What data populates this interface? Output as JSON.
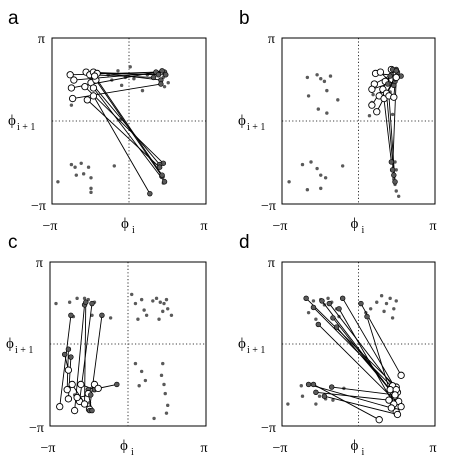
{
  "chart_data": [
    {
      "panel": "a",
      "type": "scatter",
      "xlabel": "ϕ",
      "xlabel_sub": "i",
      "ylabel": "ϕ",
      "ylabel_sub": "i + 1",
      "x_tick_labels": [
        "−π",
        "π"
      ],
      "y_tick_labels": [
        "π",
        "−π"
      ],
      "xlim": [
        -3.1416,
        3.1416
      ],
      "ylim": [
        -3.1416,
        3.1416
      ],
      "grid": false,
      "crosshair_at_zero": true,
      "background_points": [
        [
          -0.85,
          1.75
        ],
        [
          -0.7,
          1.55
        ],
        [
          -0.45,
          1.9
        ],
        [
          -0.3,
          1.35
        ],
        [
          -0.15,
          1.65
        ],
        [
          0.05,
          2.05
        ],
        [
          0.2,
          1.6
        ],
        [
          0.55,
          1.15
        ],
        [
          0.75,
          1.75
        ],
        [
          1.05,
          1.8
        ],
        [
          1.25,
          1.85
        ],
        [
          1.4,
          1.65
        ],
        [
          1.45,
          1.3
        ],
        [
          1.6,
          1.45
        ],
        [
          -2.35,
          0.6
        ],
        [
          -0.35,
          0.05
        ],
        [
          -2.35,
          -1.65
        ],
        [
          -2.2,
          -1.75
        ],
        [
          -1.95,
          -1.6
        ],
        [
          -1.65,
          -1.75
        ],
        [
          -2.15,
          -2.05
        ],
        [
          -1.85,
          -2.0
        ],
        [
          -1.55,
          -2.15
        ],
        [
          -2.9,
          -2.3
        ],
        [
          -1.55,
          -2.55
        ],
        [
          -1.55,
          -2.7
        ],
        [
          -0.6,
          -1.7
        ],
        [
          1.35,
          -1.6
        ],
        [
          1.3,
          -2.1
        ],
        [
          1.45,
          -2.25
        ],
        [
          1.4,
          -2.35
        ]
      ],
      "trajectories": [
        {
          "start": [
            -2.4,
            1.75
          ],
          "end": [
            1.1,
            1.85
          ]
        },
        {
          "start": [
            -2.25,
            1.55
          ],
          "end": [
            1.45,
            1.85
          ]
        },
        {
          "start": [
            -1.75,
            1.85
          ],
          "end": [
            1.2,
            1.75
          ]
        },
        {
          "start": [
            -1.6,
            1.75
          ],
          "end": [
            1.0,
            1.65
          ]
        },
        {
          "start": [
            -1.45,
            1.85
          ],
          "end": [
            1.3,
            1.55
          ]
        },
        {
          "start": [
            -1.3,
            1.8
          ],
          "end": [
            1.5,
            1.75
          ]
        },
        {
          "start": [
            -2.35,
            1.25
          ],
          "end": [
            1.35,
            1.9
          ]
        },
        {
          "start": [
            -1.8,
            1.3
          ],
          "end": [
            1.4,
            -1.6
          ]
        },
        {
          "start": [
            -1.55,
            1.45
          ],
          "end": [
            1.25,
            -1.65
          ]
        },
        {
          "start": [
            -1.35,
            1.55
          ],
          "end": [
            1.35,
            -2.1
          ]
        },
        {
          "start": [
            -1.45,
            1.25
          ],
          "end": [
            1.45,
            -2.3
          ]
        },
        {
          "start": [
            -2.3,
            0.85
          ],
          "end": [
            1.3,
            1.4
          ]
        },
        {
          "start": [
            -1.7,
            0.8
          ],
          "end": [
            1.25,
            -1.75
          ]
        },
        {
          "start": [
            -1.45,
            0.95
          ],
          "end": [
            0.85,
            -2.75
          ]
        },
        {
          "start": [
            -1.4,
            1.7
          ],
          "end": [
            1.35,
            -2.05
          ]
        }
      ]
    },
    {
      "panel": "b",
      "type": "scatter",
      "xlabel": "ϕ",
      "xlabel_sub": "i",
      "ylabel": "ϕ",
      "ylabel_sub": "i + 1",
      "x_tick_labels": [
        "−π",
        "π"
      ],
      "y_tick_labels": [
        "π",
        "−π"
      ],
      "xlim": [
        -3.1416,
        3.1416
      ],
      "ylim": [
        -3.1416,
        3.1416
      ],
      "grid": false,
      "crosshair_at_zero": true,
      "background_points": [
        [
          -2.1,
          1.65
        ],
        [
          -2.05,
          0.95
        ],
        [
          -1.7,
          1.75
        ],
        [
          -1.55,
          1.6
        ],
        [
          -1.4,
          1.5
        ],
        [
          -1.15,
          1.7
        ],
        [
          -1.3,
          1.15
        ],
        [
          -1.65,
          0.45
        ],
        [
          -1.3,
          0.3
        ],
        [
          -0.85,
          0.8
        ],
        [
          -2.85,
          -2.3
        ],
        [
          -2.3,
          -1.65
        ],
        [
          -1.95,
          -1.55
        ],
        [
          -1.7,
          -1.8
        ],
        [
          -1.55,
          -2.05
        ],
        [
          -1.55,
          -2.55
        ],
        [
          -2.1,
          -2.6
        ],
        [
          -1.35,
          -2.15
        ],
        [
          -0.65,
          -1.7
        ],
        [
          0.6,
          1.0
        ],
        [
          1.5,
          -1.55
        ],
        [
          1.55,
          -1.85
        ],
        [
          1.45,
          -2.2
        ],
        [
          1.5,
          -2.4
        ],
        [
          1.55,
          -2.65
        ],
        [
          1.65,
          -2.85
        ],
        [
          1.3,
          1.1
        ],
        [
          0.55,
          0.7
        ],
        [
          0.45,
          0.2
        ],
        [
          1.4,
          0.25
        ]
      ],
      "trajectories": [
        {
          "start": [
            0.7,
            1.8
          ],
          "end": [
            1.75,
            1.7
          ]
        },
        {
          "start": [
            0.9,
            1.85
          ],
          "end": [
            1.45,
            1.35
          ]
        },
        {
          "start": [
            0.65,
            1.4
          ],
          "end": [
            1.35,
            1.75
          ]
        },
        {
          "start": [
            0.55,
            1.2
          ],
          "end": [
            1.5,
            1.5
          ]
        },
        {
          "start": [
            1.1,
            1.5
          ],
          "end": [
            1.55,
            1.95
          ]
        },
        {
          "start": [
            1.35,
            1.95
          ],
          "end": [
            1.2,
            1.4
          ]
        },
        {
          "start": [
            0.85,
            0.95
          ],
          "end": [
            1.4,
            1.95
          ]
        },
        {
          "start": [
            1.05,
            0.85
          ],
          "end": [
            1.5,
            1.6
          ]
        },
        {
          "start": [
            1.0,
            1.2
          ],
          "end": [
            1.35,
            -1.55
          ]
        },
        {
          "start": [
            1.15,
            1.05
          ],
          "end": [
            1.45,
            -2.05
          ]
        },
        {
          "start": [
            1.25,
            0.95
          ],
          "end": [
            1.5,
            -2.3
          ]
        },
        {
          "start": [
            0.55,
            0.6
          ],
          "end": [
            1.3,
            1.7
          ]
        },
        {
          "start": [
            0.75,
            0.35
          ],
          "end": [
            1.6,
            1.85
          ]
        },
        {
          "start": [
            1.45,
            0.9
          ],
          "end": [
            1.55,
            1.9
          ]
        },
        {
          "start": [
            1.55,
            1.65
          ],
          "end": [
            1.4,
            -1.85
          ]
        }
      ]
    },
    {
      "panel": "c",
      "type": "scatter",
      "xlabel": "ϕ",
      "xlabel_sub": "i",
      "ylabel": "ϕ",
      "ylabel_sub": "i + 1",
      "x_tick_labels": [
        "−π",
        "π"
      ],
      "y_tick_labels": [
        "π",
        "−π"
      ],
      "xlim": [
        -3.1416,
        3.1416
      ],
      "ylim": [
        -3.1416,
        3.1416
      ],
      "grid": false,
      "crosshair_at_zero": true,
      "background_points": [
        [
          -2.9,
          1.55
        ],
        [
          -2.35,
          1.6
        ],
        [
          -2.05,
          1.75
        ],
        [
          -1.75,
          1.75
        ],
        [
          -1.6,
          1.7
        ],
        [
          -1.35,
          1.6
        ],
        [
          -2.2,
          1.05
        ],
        [
          -1.45,
          1.1
        ],
        [
          -0.7,
          1.0
        ],
        [
          0.15,
          1.9
        ],
        [
          0.3,
          1.55
        ],
        [
          0.55,
          1.7
        ],
        [
          0.65,
          1.3
        ],
        [
          0.75,
          1.1
        ],
        [
          1.0,
          1.65
        ],
        [
          1.15,
          1.75
        ],
        [
          1.3,
          1.6
        ],
        [
          1.45,
          1.55
        ],
        [
          1.55,
          1.7
        ],
        [
          1.4,
          1.25
        ],
        [
          1.6,
          1.35
        ],
        [
          1.75,
          1.1
        ],
        [
          0.4,
          0.95
        ],
        [
          1.25,
          0.95
        ],
        [
          0.3,
          -0.75
        ],
        [
          0.55,
          -1.05
        ],
        [
          0.7,
          -1.4
        ],
        [
          0.45,
          -1.6
        ],
        [
          1.4,
          -0.75
        ],
        [
          1.35,
          -1.2
        ],
        [
          1.45,
          -1.55
        ],
        [
          1.5,
          -1.9
        ],
        [
          1.6,
          -2.35
        ],
        [
          1.55,
          -2.65
        ],
        [
          1.05,
          -2.85
        ],
        [
          -2.35,
          -1.65
        ],
        [
          -2.15,
          -1.95
        ],
        [
          -1.55,
          -2.25
        ]
      ],
      "trajectories": [
        {
          "start": [
            -2.75,
            -2.4
          ],
          "end": [
            -2.3,
            1.1
          ]
        },
        {
          "start": [
            -2.4,
            -2.1
          ],
          "end": [
            -2.3,
            -0.5
          ]
        },
        {
          "start": [
            -2.15,
            -2.55
          ],
          "end": [
            -1.75,
            1.5
          ]
        },
        {
          "start": [
            -1.95,
            -2.2
          ],
          "end": [
            -1.45,
            1.55
          ]
        },
        {
          "start": [
            -2.45,
            -1.75
          ],
          "end": [
            -2.4,
            -0.2
          ]
        },
        {
          "start": [
            -1.75,
            -2.3
          ],
          "end": [
            -1.7,
            1.6
          ]
        },
        {
          "start": [
            -1.55,
            -2.5
          ],
          "end": [
            -1.05,
            1.1
          ]
        },
        {
          "start": [
            -1.9,
            -1.55
          ],
          "end": [
            -1.35,
            -1.75
          ]
        },
        {
          "start": [
            -2.25,
            -1.55
          ],
          "end": [
            -1.55,
            -2.55
          ]
        },
        {
          "start": [
            -1.35,
            -1.55
          ],
          "end": [
            -1.6,
            -1.75
          ]
        },
        {
          "start": [
            -2.4,
            -1.0
          ],
          "end": [
            -2.55,
            -0.4
          ]
        },
        {
          "start": [
            -1.6,
            -1.9
          ],
          "end": [
            -1.45,
            -2.55
          ]
        },
        {
          "start": [
            -1.2,
            -1.7
          ],
          "end": [
            -0.45,
            -1.55
          ]
        },
        {
          "start": [
            -2.05,
            -2.05
          ],
          "end": [
            -1.5,
            -1.95
          ]
        }
      ]
    },
    {
      "panel": "d",
      "type": "scatter",
      "xlabel": "ϕ",
      "xlabel_sub": "i",
      "ylabel": "ϕ",
      "ylabel_sub": "i + 1",
      "x_tick_labels": [
        "−π",
        "π"
      ],
      "y_tick_labels": [
        "π",
        "−π"
      ],
      "xlim": [
        -3.1416,
        3.1416
      ],
      "ylim": [
        -3.1416,
        3.1416
      ],
      "grid": false,
      "crosshair_at_zero": true,
      "background_points": [
        [
          -2.15,
          1.75
        ],
        [
          -1.85,
          1.65
        ],
        [
          -1.55,
          1.7
        ],
        [
          -1.4,
          1.5
        ],
        [
          -1.25,
          1.75
        ],
        [
          -1.1,
          1.6
        ],
        [
          -0.9,
          1.35
        ],
        [
          -0.8,
          1.05
        ],
        [
          -1.75,
          0.95
        ],
        [
          -2.05,
          1.2
        ],
        [
          0.3,
          1.2
        ],
        [
          0.5,
          1.35
        ],
        [
          0.75,
          1.6
        ],
        [
          0.95,
          1.85
        ],
        [
          1.15,
          1.55
        ],
        [
          1.3,
          1.75
        ],
        [
          1.45,
          1.35
        ],
        [
          1.55,
          1.65
        ],
        [
          1.05,
          1.25
        ],
        [
          1.4,
          1.0
        ],
        [
          -2.9,
          -2.3
        ],
        [
          -2.35,
          -1.6
        ],
        [
          -2.3,
          -2.0
        ],
        [
          -1.6,
          -2.0
        ],
        [
          -1.35,
          -2.1
        ],
        [
          -0.6,
          -1.7
        ],
        [
          -1.05,
          -2.15
        ],
        [
          -1.75,
          -2.3
        ]
      ],
      "trajectories": [
        {
          "start": [
            1.55,
            -1.65
          ],
          "end": [
            -2.15,
            1.75
          ]
        },
        {
          "start": [
            1.6,
            -1.85
          ],
          "end": [
            -1.85,
            1.4
          ]
        },
        {
          "start": [
            1.5,
            -2.0
          ],
          "end": [
            -1.5,
            1.65
          ]
        },
        {
          "start": [
            1.4,
            -1.6
          ],
          "end": [
            -1.2,
            1.55
          ]
        },
        {
          "start": [
            1.65,
            -2.2
          ],
          "end": [
            -1.05,
            1.0
          ]
        },
        {
          "start": [
            1.45,
            -2.3
          ],
          "end": [
            -0.8,
            1.35
          ]
        },
        {
          "start": [
            1.75,
            -2.4
          ],
          "end": [
            -1.65,
            0.75
          ]
        },
        {
          "start": [
            1.3,
            -1.75
          ],
          "end": [
            -0.9,
            0.65
          ]
        },
        {
          "start": [
            1.55,
            -2.6
          ],
          "end": [
            0.35,
            1.05
          ]
        },
        {
          "start": [
            1.75,
            -1.2
          ],
          "end": [
            0.1,
            1.55
          ]
        },
        {
          "start": [
            1.55,
            -1.75
          ],
          "end": [
            -0.65,
            1.75
          ]
        },
        {
          "start": [
            1.35,
            -2.45
          ],
          "end": [
            -2.05,
            -1.55
          ]
        },
        {
          "start": [
            1.25,
            -2.15
          ],
          "end": [
            -1.75,
            -1.85
          ]
        },
        {
          "start": [
            1.6,
            -2.7
          ],
          "end": [
            -1.4,
            -2.0
          ]
        },
        {
          "start": [
            0.85,
            -2.9
          ],
          "end": [
            -1.85,
            -1.55
          ]
        },
        {
          "start": [
            1.5,
            -1.95
          ],
          "end": [
            -1.1,
            -1.65
          ]
        }
      ]
    }
  ]
}
